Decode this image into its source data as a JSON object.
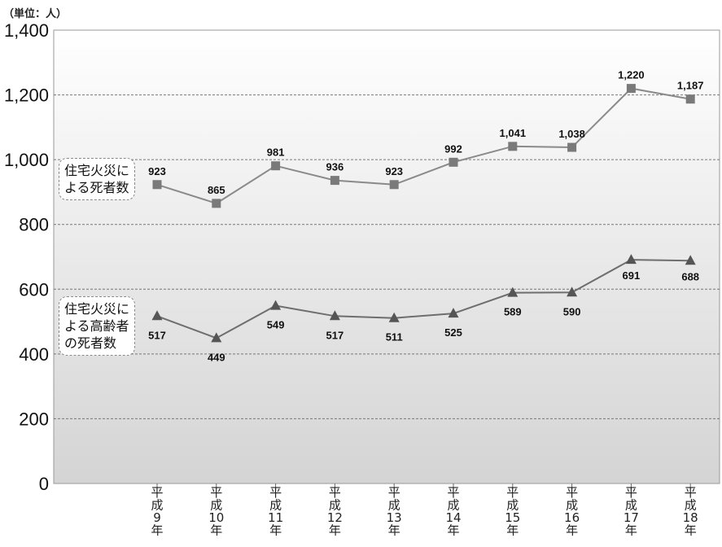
{
  "unit_label": "（単位：人）",
  "callouts": {
    "total": "住宅火災に\nよる死者数",
    "elderly": "住宅火災に\nよる高齢者\nの死者数"
  },
  "chart_data": {
    "type": "line",
    "categories": [
      [
        "平",
        "成",
        "9",
        "年"
      ],
      [
        "平",
        "成",
        "10",
        "年"
      ],
      [
        "平",
        "成",
        "11",
        "年"
      ],
      [
        "平",
        "成",
        "12",
        "年"
      ],
      [
        "平",
        "成",
        "13",
        "年"
      ],
      [
        "平",
        "成",
        "14",
        "年"
      ],
      [
        "平",
        "成",
        "15",
        "年"
      ],
      [
        "平",
        "成",
        "16",
        "年"
      ],
      [
        "平",
        "成",
        "17",
        "年"
      ],
      [
        "平",
        "成",
        "18",
        "年"
      ]
    ],
    "series": [
      {
        "name": "住宅火災による死者数",
        "marker": "square",
        "color": "#8a8a8a",
        "values": [
          923,
          865,
          981,
          936,
          923,
          992,
          1041,
          1038,
          1220,
          1187
        ],
        "labels": [
          "923",
          "865",
          "981",
          "936",
          "923",
          "992",
          "1,041",
          "1,038",
          "1,220",
          "1,187"
        ]
      },
      {
        "name": "住宅火災による高齢者の死者数",
        "marker": "triangle",
        "color": "#6e6e6e",
        "values": [
          517,
          449,
          549,
          517,
          511,
          525,
          589,
          590,
          691,
          688
        ],
        "labels": [
          "517",
          "449",
          "549",
          "517",
          "511",
          "525",
          "589",
          "590",
          "691",
          "688"
        ]
      }
    ],
    "ylim": [
      0,
      1400
    ],
    "yticks": [
      0,
      200,
      400,
      600,
      800,
      1000,
      1200,
      1400
    ],
    "ytick_labels": [
      "0",
      "200",
      "400",
      "600",
      "800",
      "1,000",
      "1,200",
      "1,400"
    ],
    "grid": true
  }
}
